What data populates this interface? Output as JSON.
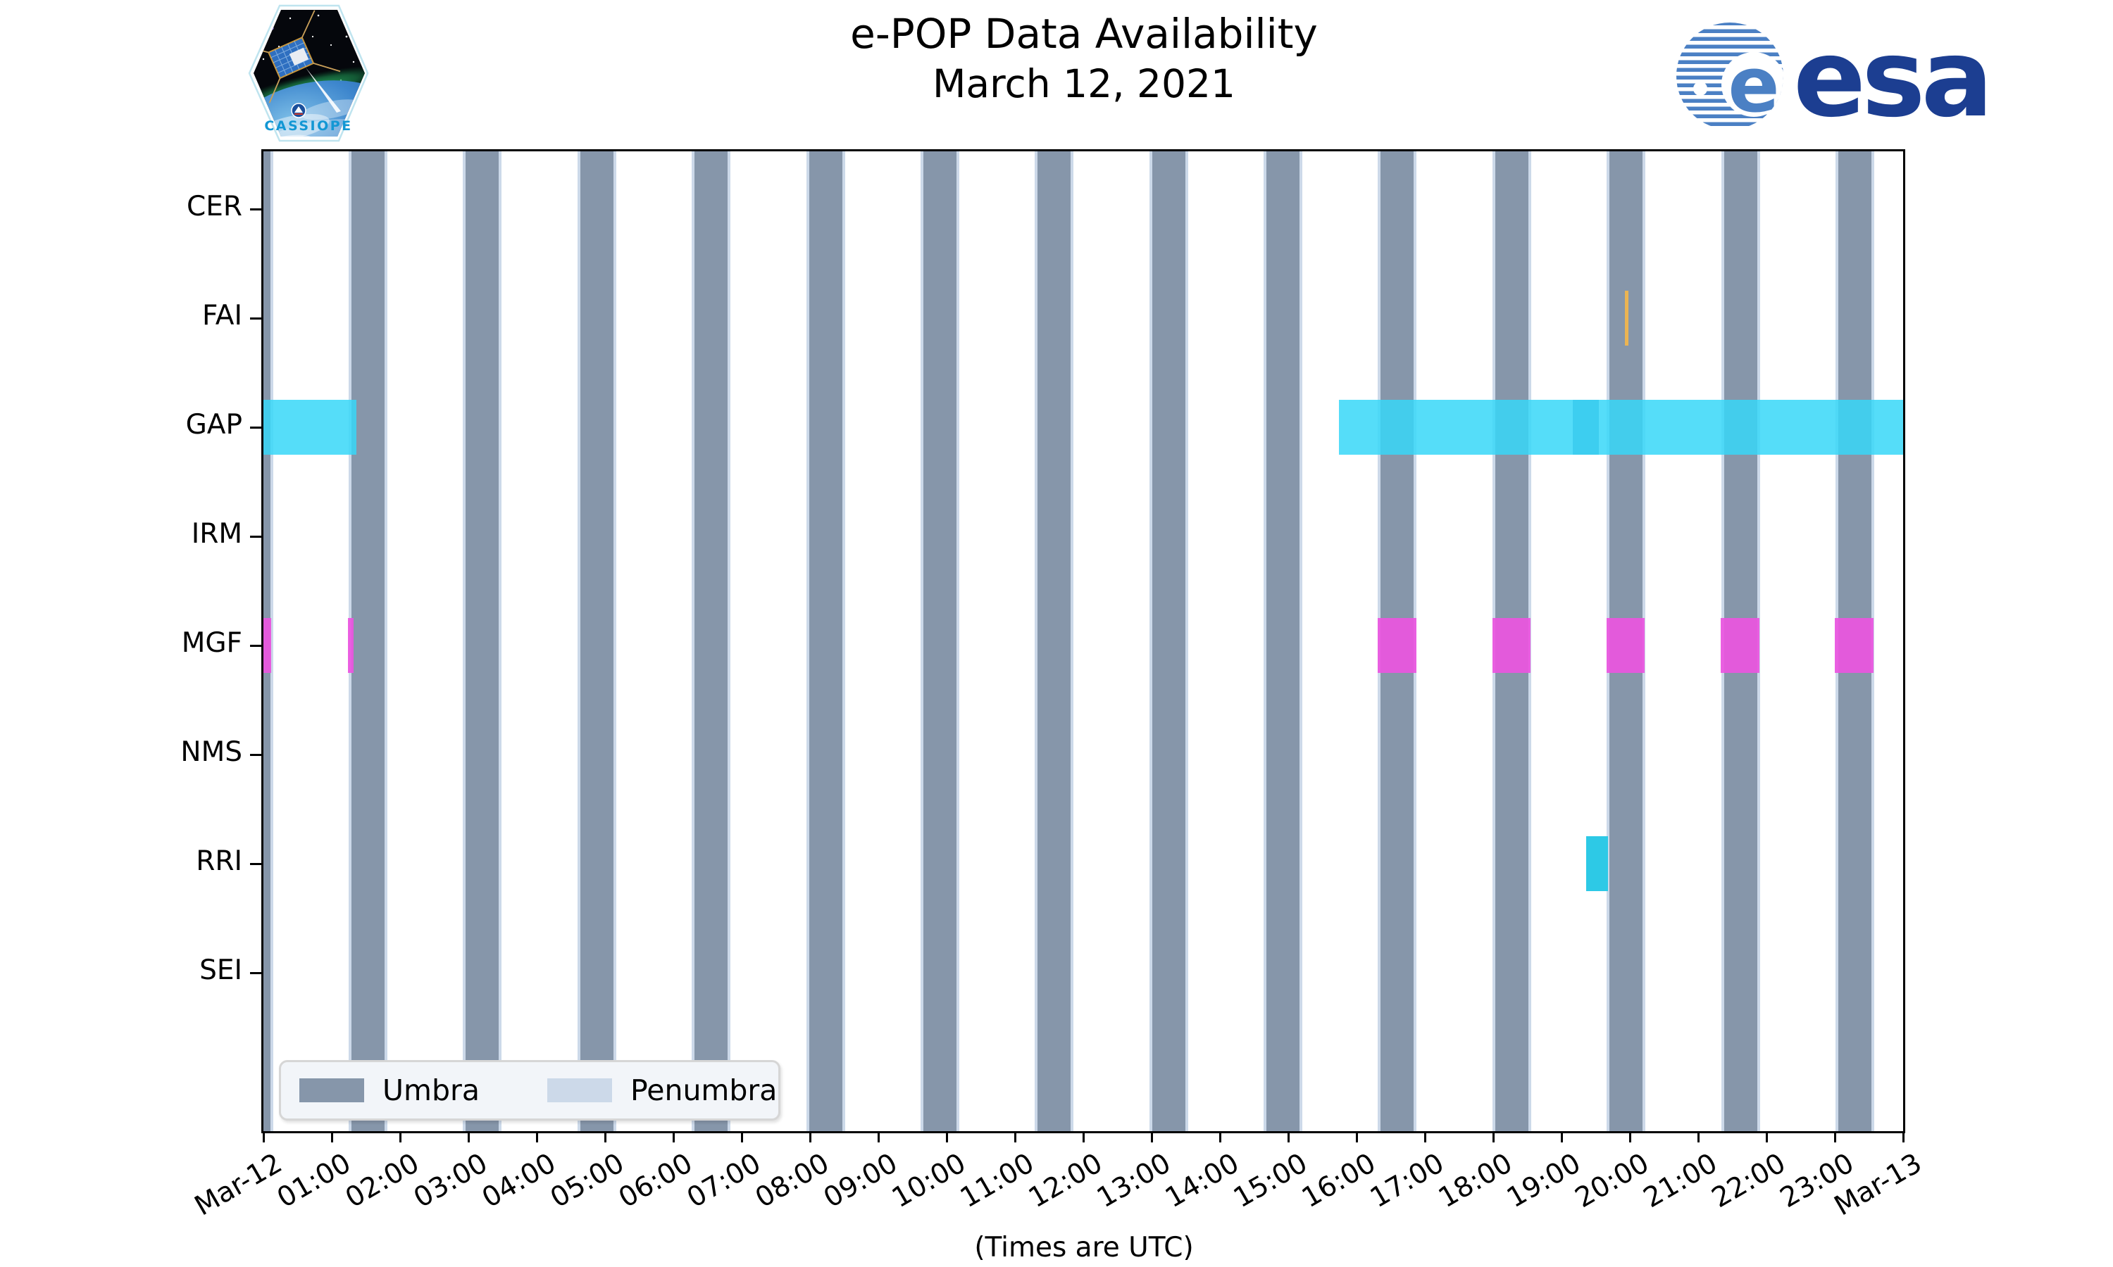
{
  "header": {
    "title_line1": "e-POP Data Availability",
    "title_line2": "March 12, 2021",
    "esa_wordmark": "esa",
    "cassiope_patch_label": "CASSIOPE"
  },
  "footer_note": "(Times are UTC)",
  "legend": {
    "items": [
      {
        "label": "Umbra",
        "color": "#8696aa"
      },
      {
        "label": "Penumbra",
        "color": "#ccd9e9"
      }
    ]
  },
  "colors": {
    "umbra": "#8696aa",
    "penumbra": "#ccd9e9",
    "gap_cyan": "rgba(55,215,248,0.85)",
    "gap_overlap": "rgba(0,170,220,0.28)",
    "rri_cyan": "#2dc9e6",
    "mgf_magenta": "rgba(235,85,223,0.92)",
    "fai_orange": "#ebb452",
    "esa_blue": "#1c3e91",
    "esa_stripe_blue": "#4b80c4",
    "cassiope_text_blue": "#1397d4"
  },
  "chart_data": {
    "type": "timeline",
    "title": "e-POP Data Availability",
    "subtitle": "March 12, 2021",
    "x_axis": {
      "range_hours": [
        0,
        24
      ],
      "tick_labels": [
        "Mar-12",
        "01:00",
        "02:00",
        "03:00",
        "04:00",
        "05:00",
        "06:00",
        "07:00",
        "08:00",
        "09:00",
        "10:00",
        "11:00",
        "12:00",
        "13:00",
        "14:00",
        "15:00",
        "16:00",
        "17:00",
        "18:00",
        "19:00",
        "20:00",
        "21:00",
        "22:00",
        "23:00",
        "Mar-13"
      ],
      "note": "(Times are UTC)"
    },
    "rows": [
      "CER",
      "FAI",
      "GAP",
      "IRM",
      "MGF",
      "NMS",
      "RRI",
      "SEI"
    ],
    "umbra_intervals_h": [
      [
        0.0,
        0.1
      ],
      [
        1.289,
        1.774
      ],
      [
        2.963,
        3.448
      ],
      [
        4.637,
        5.122
      ],
      [
        6.311,
        6.796
      ],
      [
        7.985,
        8.47
      ],
      [
        9.659,
        10.144
      ],
      [
        11.333,
        11.818
      ],
      [
        13.007,
        13.492
      ],
      [
        14.681,
        15.166
      ],
      [
        16.355,
        16.84
      ],
      [
        18.029,
        18.514
      ],
      [
        19.703,
        20.188
      ],
      [
        21.377,
        21.862
      ],
      [
        23.051,
        23.536
      ]
    ],
    "series": [
      {
        "row": "FAI",
        "color_key": "fai_orange",
        "intervals_h": [
          [
            19.93,
            19.98
          ]
        ]
      },
      {
        "row": "GAP",
        "color_key": "gap_cyan",
        "intervals_h": [
          [
            0.0,
            1.36
          ],
          [
            15.74,
            24.0
          ]
        ],
        "overlap_intervals_h": [
          [
            19.16,
            19.55
          ]
        ]
      },
      {
        "row": "MGF",
        "color_key": "mgf_magenta",
        "intervals_h": [
          [
            0.0,
            0.11
          ],
          [
            1.24,
            1.32
          ],
          [
            16.31,
            16.88
          ],
          [
            17.99,
            18.55
          ],
          [
            19.66,
            20.22
          ],
          [
            21.33,
            21.9
          ],
          [
            23.0,
            23.57
          ]
        ]
      },
      {
        "row": "RRI",
        "color_key": "rri_cyan",
        "intervals_h": [
          [
            19.36,
            19.68
          ]
        ]
      }
    ],
    "legend_position": "lower left",
    "grid": false
  }
}
